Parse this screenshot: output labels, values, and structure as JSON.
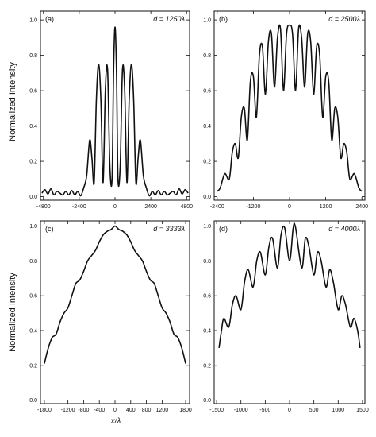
{
  "figure": {
    "ylabel_top": "Normalized Intensity",
    "ylabel_bottom": "Normalized Intensity",
    "xlabel": "x/λ"
  },
  "chart_data": [
    {
      "type": "line",
      "panel_label": "(a)",
      "annotation": "d = 1250λ",
      "xlim": [
        -5000,
        5000
      ],
      "ylim": [
        -0.02,
        1.05
      ],
      "xticks": [
        -4800,
        -2400,
        0,
        2400,
        4800
      ],
      "yticks": [
        0.0,
        0.2,
        0.4,
        0.6,
        0.8,
        1.0
      ],
      "ytick_labels": [
        "0.0",
        "0.2",
        "0.4",
        "0.6",
        "0.8",
        "1.0"
      ],
      "grid": false,
      "series": [
        {
          "x": [
            -4900,
            -4700,
            -4500,
            -4300,
            -4100,
            -3900,
            -3700,
            -3500,
            -3300,
            -3100,
            -2900,
            -2700,
            -2500,
            -2300,
            -2100,
            -1900,
            -1700,
            -1550,
            -1400,
            -1250,
            -1100,
            -950,
            -800,
            -650,
            -500,
            -350,
            -200,
            -100,
            0,
            100,
            200,
            350,
            500,
            650,
            800,
            950,
            1100,
            1250,
            1400,
            1550,
            1700,
            1900,
            2100,
            2300,
            2500,
            2700,
            2900,
            3100,
            3300,
            3500,
            3700,
            3900,
            4100,
            4300,
            4500,
            4700,
            4900
          ],
          "y": [
            0.02,
            0.04,
            0.015,
            0.045,
            0.01,
            0.03,
            0.02,
            0.01,
            0.03,
            0.01,
            0.035,
            0.01,
            0.03,
            0.005,
            0.05,
            0.12,
            0.32,
            0.22,
            0.08,
            0.55,
            0.75,
            0.55,
            0.08,
            0.6,
            0.72,
            0.18,
            0.1,
            0.7,
            0.96,
            0.7,
            0.1,
            0.18,
            0.72,
            0.6,
            0.08,
            0.55,
            0.75,
            0.55,
            0.08,
            0.22,
            0.32,
            0.12,
            0.05,
            0.005,
            0.03,
            0.01,
            0.035,
            0.01,
            0.03,
            0.01,
            0.02,
            0.03,
            0.01,
            0.045,
            0.015,
            0.04,
            0.02
          ]
        }
      ]
    },
    {
      "type": "line",
      "panel_label": "(b)",
      "annotation": "d = 2500λ",
      "xlim": [
        -2500,
        2500
      ],
      "ylim": [
        -0.02,
        1.05
      ],
      "xticks": [
        -2400,
        -1200,
        0,
        1200,
        2400
      ],
      "yticks": [
        0.0,
        0.2,
        0.4,
        0.6,
        0.8,
        1.0
      ],
      "ytick_labels": [
        "0.0",
        "0.2",
        "0.4",
        "0.6",
        "0.8",
        "1.0"
      ],
      "grid": false,
      "series": [
        {
          "x": [
            -2400,
            -2300,
            -2150,
            -2000,
            -1900,
            -1800,
            -1700,
            -1600,
            -1500,
            -1400,
            -1300,
            -1200,
            -1100,
            -1000,
            -900,
            -800,
            -700,
            -600,
            -500,
            -400,
            -300,
            -200,
            -100,
            0,
            100,
            200,
            300,
            400,
            500,
            600,
            700,
            800,
            900,
            1000,
            1100,
            1200,
            1300,
            1400,
            1500,
            1600,
            1700,
            1800,
            1900,
            2000,
            2150,
            2300,
            2400
          ],
          "y": [
            0.03,
            0.05,
            0.13,
            0.1,
            0.25,
            0.3,
            0.22,
            0.45,
            0.5,
            0.32,
            0.65,
            0.68,
            0.45,
            0.8,
            0.85,
            0.58,
            0.88,
            0.92,
            0.62,
            0.9,
            0.95,
            0.6,
            0.92,
            0.97,
            0.92,
            0.6,
            0.95,
            0.9,
            0.62,
            0.92,
            0.88,
            0.58,
            0.85,
            0.8,
            0.45,
            0.68,
            0.65,
            0.32,
            0.5,
            0.45,
            0.22,
            0.3,
            0.25,
            0.1,
            0.13,
            0.05,
            0.03
          ]
        }
      ]
    },
    {
      "type": "line",
      "panel_label": "(c)",
      "annotation": "d = 3333λ",
      "xlim": [
        -1900,
        1900
      ],
      "ylim": [
        -0.02,
        1.03
      ],
      "xticks": [
        -1800,
        -1200,
        -800,
        -400,
        0,
        400,
        800,
        1200,
        1800
      ],
      "yticks": [
        0.0,
        0.2,
        0.4,
        0.6,
        0.8,
        1.0
      ],
      "ytick_labels": [
        "0.0",
        "0.2",
        "0.4",
        "0.6",
        "0.8",
        "1.0"
      ],
      "grid": false,
      "series": [
        {
          "x": [
            -1800,
            -1700,
            -1600,
            -1500,
            -1400,
            -1300,
            -1200,
            -1100,
            -1000,
            -900,
            -800,
            -700,
            -600,
            -500,
            -400,
            -300,
            -200,
            -100,
            0,
            100,
            200,
            300,
            400,
            500,
            600,
            700,
            800,
            900,
            1000,
            1100,
            1200,
            1300,
            1400,
            1500,
            1600,
            1700,
            1800
          ],
          "y": [
            0.21,
            0.3,
            0.36,
            0.38,
            0.45,
            0.5,
            0.53,
            0.6,
            0.67,
            0.69,
            0.74,
            0.8,
            0.83,
            0.86,
            0.91,
            0.95,
            0.97,
            0.98,
            1.0,
            0.98,
            0.97,
            0.95,
            0.91,
            0.86,
            0.83,
            0.8,
            0.74,
            0.69,
            0.67,
            0.6,
            0.53,
            0.5,
            0.45,
            0.38,
            0.36,
            0.3,
            0.21
          ]
        }
      ]
    },
    {
      "type": "line",
      "panel_label": "(d)",
      "annotation": "d = 4000λ",
      "xlim": [
        -1550,
        1550
      ],
      "ylim": [
        -0.02,
        1.03
      ],
      "xticks": [
        -1500,
        -1000,
        -500,
        0,
        500,
        1000,
        1500
      ],
      "yticks": [
        0.0,
        0.2,
        0.4,
        0.6,
        0.8,
        1.0
      ],
      "ytick_labels": [
        "0.0",
        "0.2",
        "0.4",
        "0.6",
        "0.8",
        "1.0"
      ],
      "grid": false,
      "series": [
        {
          "x": [
            -1450,
            -1400,
            -1350,
            -1250,
            -1175,
            -1100,
            -1000,
            -925,
            -850,
            -750,
            -675,
            -600,
            -500,
            -425,
            -350,
            -250,
            -175,
            -100,
            0,
            75,
            125,
            250,
            325,
            400,
            500,
            575,
            650,
            750,
            825,
            900,
            1000,
            1075,
            1150,
            1250,
            1325,
            1400,
            1450
          ],
          "y": [
            0.3,
            0.4,
            0.47,
            0.42,
            0.55,
            0.6,
            0.52,
            0.68,
            0.75,
            0.65,
            0.8,
            0.85,
            0.72,
            0.88,
            0.93,
            0.76,
            0.95,
            0.99,
            0.8,
            0.99,
            0.99,
            0.76,
            0.93,
            0.88,
            0.72,
            0.85,
            0.8,
            0.65,
            0.75,
            0.68,
            0.52,
            0.6,
            0.55,
            0.42,
            0.47,
            0.4,
            0.3
          ]
        }
      ]
    }
  ]
}
